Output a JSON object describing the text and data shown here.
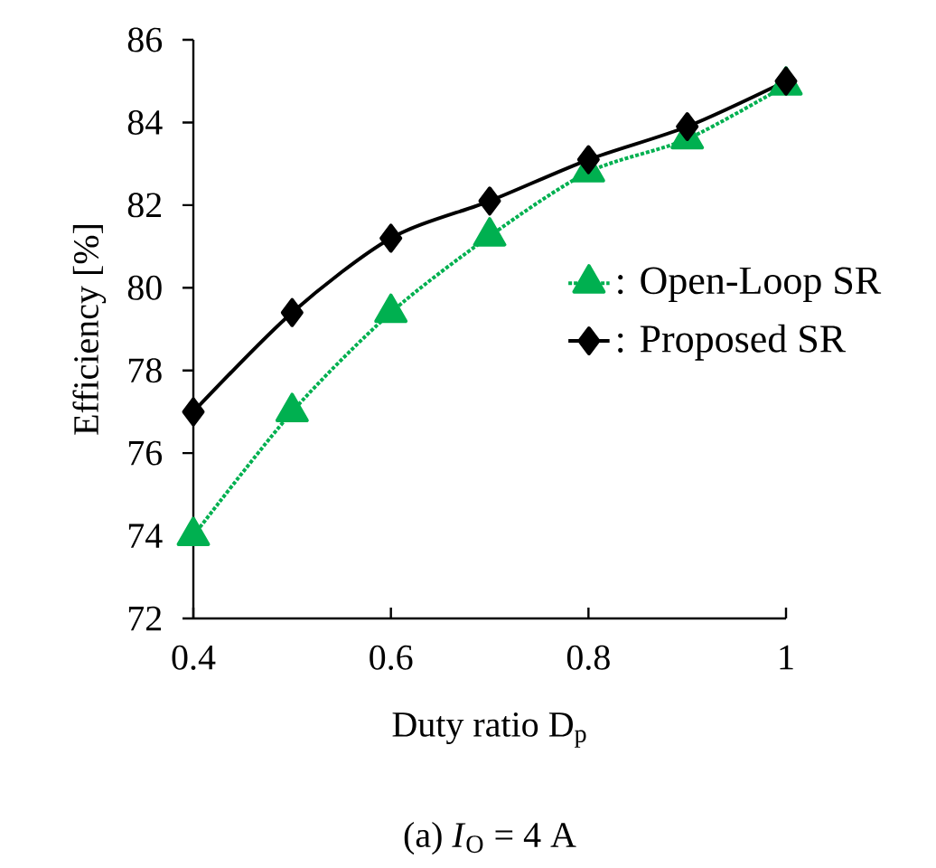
{
  "chart_data": {
    "type": "line",
    "xlabel": "Duty ratio D$_{p}$",
    "ylabel": "Efficiency [%]",
    "annotations": [
      "(a) *I*$_{O}$ = 4 A"
    ],
    "x": [
      0.4,
      0.5,
      0.6,
      0.7,
      0.8,
      0.9,
      1.0
    ],
    "series": [
      {
        "name": ": Open-Loop SR",
        "color": "#00b050",
        "marker": "triangle",
        "line_style": "dotted",
        "values": [
          74.0,
          77.0,
          79.4,
          81.25,
          82.8,
          83.6,
          84.9
        ]
      },
      {
        "name": ": Proposed SR",
        "color": "#000000",
        "marker": "diamond",
        "line_style": "solid",
        "values": [
          77.0,
          79.4,
          81.2,
          82.1,
          83.1,
          83.9,
          85.0
        ]
      }
    ],
    "xlim": [
      0.4,
      1.0
    ],
    "xticks": [
      0.4,
      0.6,
      0.8,
      1
    ],
    "ylim": [
      72,
      86
    ],
    "yticks": [
      72,
      74,
      76,
      78,
      80,
      82,
      84,
      86
    ],
    "legend": "right"
  }
}
